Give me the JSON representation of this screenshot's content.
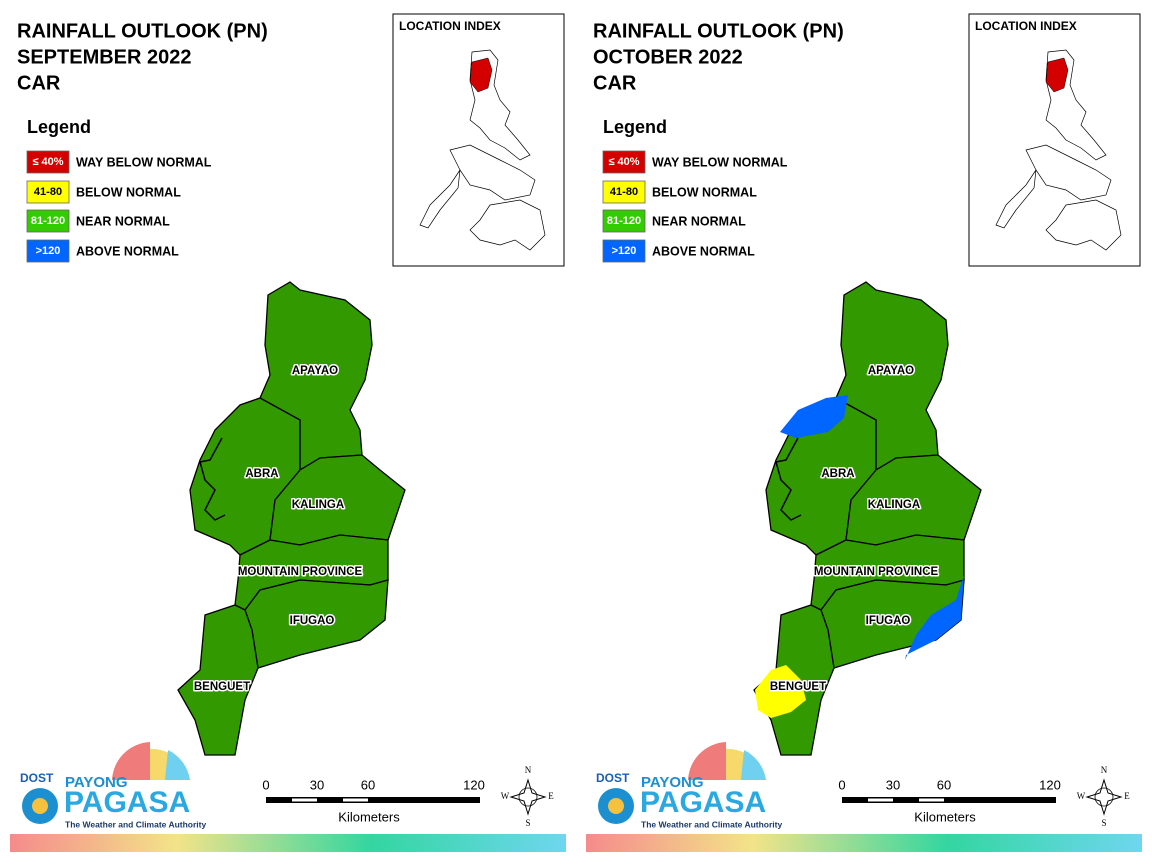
{
  "panels": [
    {
      "title": [
        "RAINFALL OUTLOOK (PN)",
        "SEPTEMBER 2022",
        "CAR"
      ],
      "legend": {
        "title": "Legend",
        "items": [
          {
            "swatch": "≤ 40%",
            "label": "WAY BELOW NORMAL",
            "color": "#d40000"
          },
          {
            "swatch": "41-80",
            "label": "BELOW NORMAL",
            "color": "#ffff00"
          },
          {
            "swatch": "81-120",
            "label": "NEAR NORMAL",
            "color": "#33cc00"
          },
          {
            "swatch": ">120",
            "label": "ABOVE NORMAL",
            "color": "#0066ff"
          }
        ]
      },
      "location_index": "LOCATION INDEX",
      "provinces": [
        "APAYAO",
        "ABRA",
        "KALINGA",
        "MOUNTAIN PROVINCE",
        "IFUGAO",
        "BENGUET"
      ],
      "scale": {
        "ticks": [
          "0",
          "30",
          "60",
          "120"
        ],
        "unit": "Kilometers"
      },
      "compass": [
        "N",
        "E",
        "S",
        "W"
      ],
      "logo": {
        "agency": "DOST",
        "brand_top": "PAYONG",
        "brand": "PAGASA",
        "tagline": "The Weather and Climate Authority"
      }
    },
    {
      "title": [
        "RAINFALL OUTLOOK (PN)",
        "OCTOBER 2022",
        "CAR"
      ],
      "legend": {
        "title": "Legend",
        "items": [
          {
            "swatch": "≤ 40%",
            "label": "WAY BELOW NORMAL",
            "color": "#d40000"
          },
          {
            "swatch": "41-80",
            "label": "BELOW NORMAL",
            "color": "#ffff00"
          },
          {
            "swatch": "81-120",
            "label": "NEAR NORMAL",
            "color": "#33cc00"
          },
          {
            "swatch": ">120",
            "label": "ABOVE NORMAL",
            "color": "#0066ff"
          }
        ]
      },
      "location_index": "LOCATION INDEX",
      "provinces": [
        "APAYAO",
        "ABRA",
        "KALINGA",
        "MOUNTAIN PROVINCE",
        "IFUGAO",
        "BENGUET"
      ],
      "scale": {
        "ticks": [
          "0",
          "30",
          "60",
          "120"
        ],
        "unit": "Kilometers"
      },
      "compass": [
        "N",
        "E",
        "S",
        "W"
      ],
      "logo": {
        "agency": "DOST",
        "brand_top": "PAYONG",
        "brand": "PAGASA",
        "tagline": "The Weather and Climate Authority"
      }
    }
  ]
}
